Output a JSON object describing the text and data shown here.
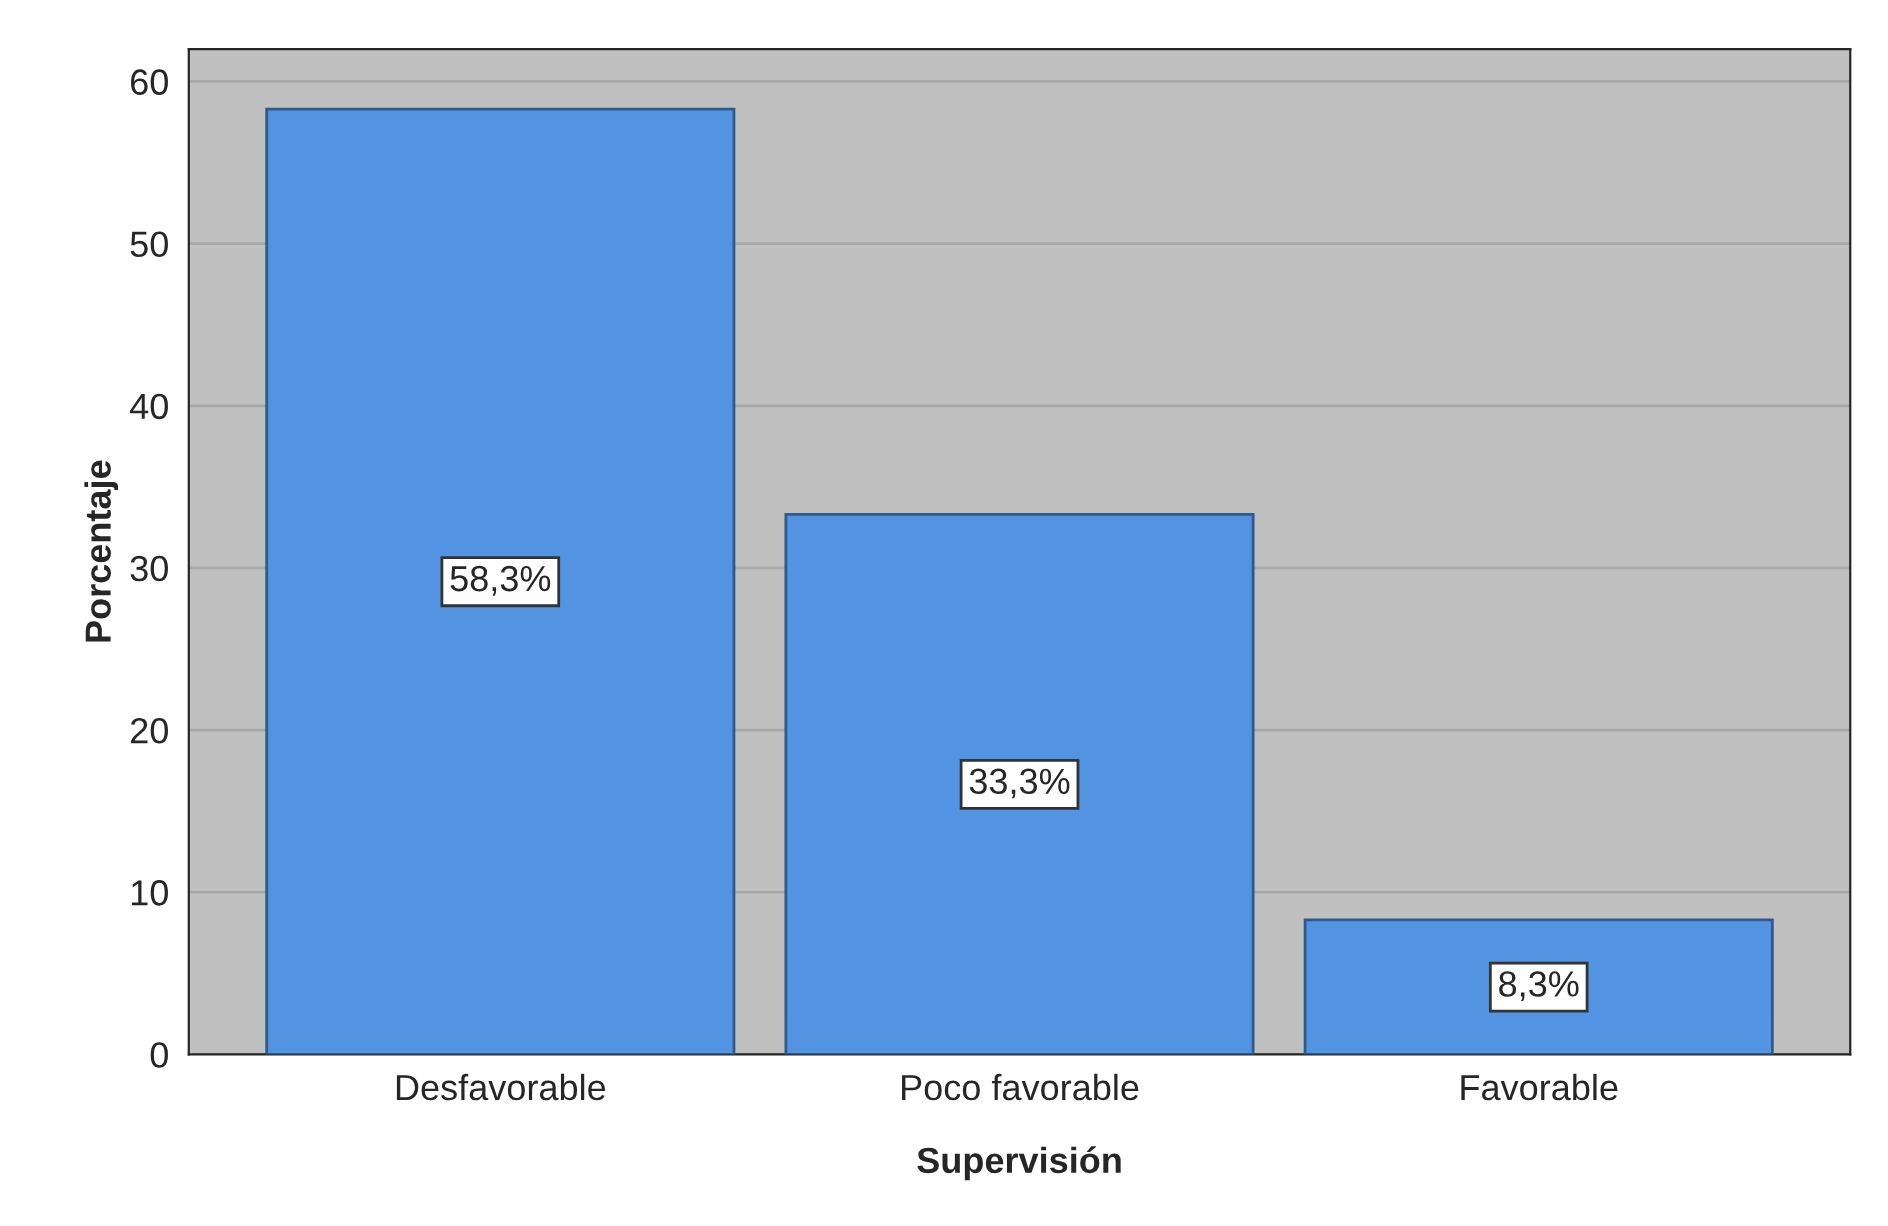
{
  "chart_data": {
    "type": "bar",
    "xlabel": "Supervisión",
    "ylabel": "Porcentaje",
    "categories": [
      "Desfavorable",
      "Poco favorable",
      "Favorable"
    ],
    "values": [
      58.3,
      33.3,
      8.3
    ],
    "value_labels": [
      "58,3%",
      "33,3%",
      "8,3%"
    ],
    "color": "#5294e2",
    "ylim": [
      0,
      62
    ],
    "yticks": [
      0,
      10,
      20,
      30,
      40,
      50,
      60
    ],
    "grid": "y"
  }
}
